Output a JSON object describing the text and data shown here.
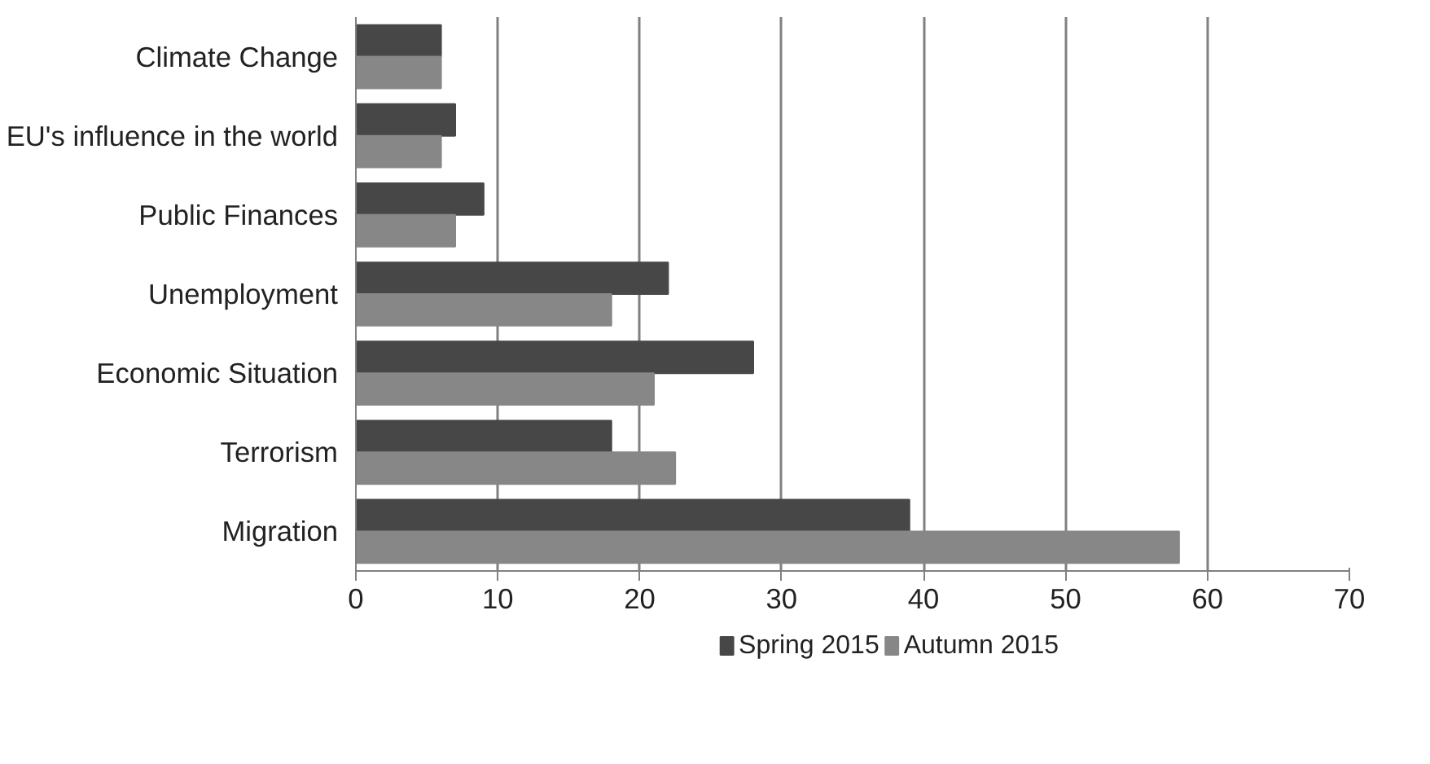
{
  "chart_data": {
    "type": "bar",
    "orientation": "horizontal",
    "categories": [
      "Climate Change",
      "EU's influence in the world",
      "Public Finances",
      "Unemployment",
      "Economic Situation",
      "Terrorism",
      "Migration"
    ],
    "series": [
      {
        "name": "Spring 2015",
        "color": "#474747",
        "values": [
          6,
          7,
          9,
          22,
          28,
          18,
          39
        ]
      },
      {
        "name": "Autumn 2015",
        "color": "#878787",
        "values": [
          6,
          6,
          7,
          18,
          21,
          22.5,
          58
        ]
      }
    ],
    "xlim": [
      0,
      70
    ],
    "xticks": [
      0,
      10,
      20,
      30,
      40,
      50,
      60,
      70
    ],
    "grid": "x",
    "legend": "bottom"
  }
}
